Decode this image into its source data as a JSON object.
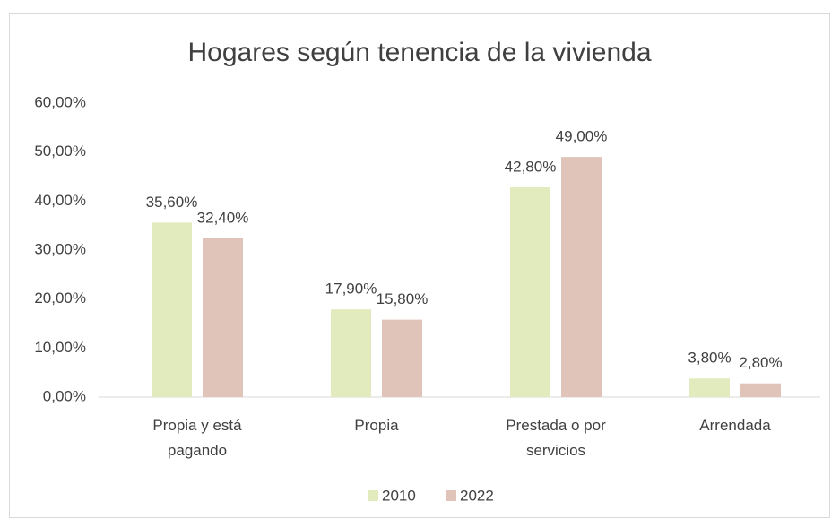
{
  "chart_data": {
    "type": "bar",
    "title": "Hogares según tenencia de la vivienda",
    "categories": [
      "Propia y está pagando",
      "Propia",
      "Prestada o por servicios",
      "Arrendada"
    ],
    "series": [
      {
        "name": "2010",
        "color": "#e2ebbd",
        "values": [
          35.6,
          17.9,
          42.8,
          3.8
        ],
        "value_labels": [
          "35,60%",
          "17,90%",
          "42,80%",
          "3,80%"
        ]
      },
      {
        "name": "2022",
        "color": "#e0c4ba",
        "values": [
          32.4,
          15.8,
          49.0,
          2.8
        ],
        "value_labels": [
          "32,40%",
          "15,80%",
          "49,00%",
          "2,80%"
        ]
      }
    ],
    "ylim": [
      0,
      60
    ],
    "yticks": [
      {
        "value": 0,
        "label": "0,00%"
      },
      {
        "value": 10,
        "label": "10,00%"
      },
      {
        "value": 20,
        "label": "20,00%"
      },
      {
        "value": 30,
        "label": "30,00%"
      },
      {
        "value": 40,
        "label": "40,00%"
      },
      {
        "value": 50,
        "label": "50,00%"
      },
      {
        "value": 60,
        "label": "60,00%"
      }
    ],
    "legend": "bottom"
  }
}
